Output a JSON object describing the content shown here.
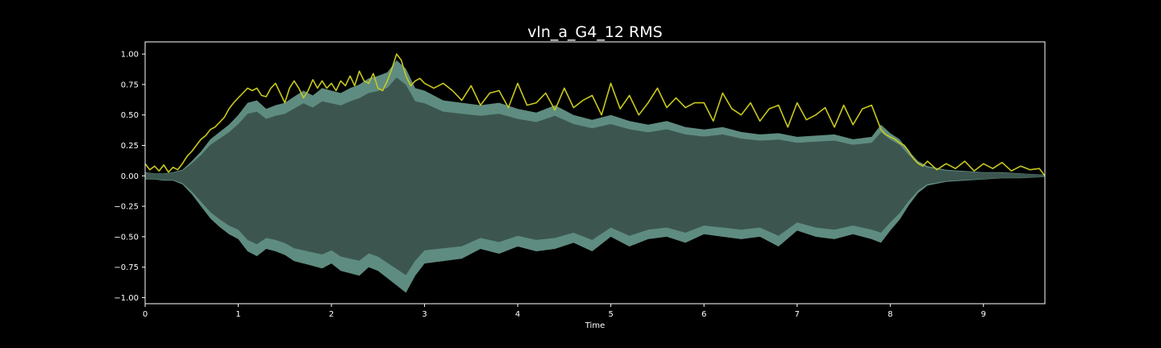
{
  "chart_data": {
    "type": "area",
    "title": "vln_a_G4_12 RMS",
    "xlabel": "Time",
    "ylabel": "",
    "xlim": [
      0,
      9.66
    ],
    "ylim": [
      -1.05,
      1.1
    ],
    "x_ticks": [
      0,
      1,
      2,
      3,
      4,
      5,
      6,
      7,
      8,
      9
    ],
    "x_tick_labels": [
      "0",
      "1",
      "2",
      "3",
      "4",
      "5",
      "6",
      "7",
      "8",
      "9"
    ],
    "y_ticks": [
      1.0,
      0.75,
      0.5,
      0.25,
      0.0,
      -0.25,
      -0.5,
      -0.75,
      -1.0
    ],
    "y_tick_labels": [
      "1.00",
      "0.75",
      "0.50",
      "0.25",
      "0.00",
      "−0.25",
      "−0.50",
      "−0.75",
      "−1.00"
    ],
    "grid": false,
    "colors": {
      "background": "#000000",
      "axes_edge": "#ffffff",
      "waveform": "#3c564f",
      "waveform_peaks": "#5f8c80",
      "rms_line": "#c8c81e"
    },
    "series": [
      {
        "kind": "waveform_envelope",
        "x": [
          0,
          0.1,
          0.2,
          0.3,
          0.4,
          0.5,
          0.6,
          0.7,
          0.8,
          0.9,
          1.0,
          1.1,
          1.2,
          1.3,
          1.4,
          1.5,
          1.6,
          1.7,
          1.8,
          1.9,
          2.0,
          2.1,
          2.2,
          2.3,
          2.4,
          2.5,
          2.6,
          2.7,
          2.8,
          2.9,
          3.0,
          3.2,
          3.4,
          3.6,
          3.8,
          4.0,
          4.2,
          4.4,
          4.6,
          4.8,
          5.0,
          5.2,
          5.4,
          5.6,
          5.8,
          6.0,
          6.2,
          6.4,
          6.6,
          6.8,
          7.0,
          7.2,
          7.4,
          7.6,
          7.8,
          7.9,
          8.0,
          8.1,
          8.2,
          8.3,
          8.4,
          8.6,
          8.8,
          9.0,
          9.2,
          9.4,
          9.66
        ],
        "upper": [
          0.03,
          0.02,
          0.02,
          0.03,
          0.05,
          0.12,
          0.2,
          0.3,
          0.36,
          0.42,
          0.5,
          0.6,
          0.62,
          0.55,
          0.58,
          0.6,
          0.65,
          0.7,
          0.66,
          0.72,
          0.7,
          0.68,
          0.72,
          0.75,
          0.8,
          0.82,
          0.85,
          0.95,
          0.88,
          0.72,
          0.7,
          0.62,
          0.6,
          0.58,
          0.6,
          0.55,
          0.52,
          0.58,
          0.5,
          0.46,
          0.5,
          0.45,
          0.42,
          0.45,
          0.4,
          0.38,
          0.4,
          0.36,
          0.34,
          0.35,
          0.32,
          0.33,
          0.34,
          0.3,
          0.32,
          0.42,
          0.35,
          0.3,
          0.2,
          0.12,
          0.08,
          0.05,
          0.04,
          0.03,
          0.03,
          0.02,
          0.01
        ],
        "lower": [
          -0.03,
          -0.03,
          -0.04,
          -0.04,
          -0.07,
          -0.15,
          -0.25,
          -0.35,
          -0.42,
          -0.48,
          -0.52,
          -0.62,
          -0.66,
          -0.6,
          -0.62,
          -0.65,
          -0.7,
          -0.72,
          -0.74,
          -0.76,
          -0.72,
          -0.78,
          -0.8,
          -0.82,
          -0.75,
          -0.78,
          -0.84,
          -0.9,
          -0.96,
          -0.82,
          -0.72,
          -0.7,
          -0.68,
          -0.6,
          -0.64,
          -0.58,
          -0.62,
          -0.6,
          -0.55,
          -0.62,
          -0.5,
          -0.58,
          -0.52,
          -0.5,
          -0.55,
          -0.48,
          -0.5,
          -0.52,
          -0.5,
          -0.58,
          -0.45,
          -0.5,
          -0.52,
          -0.48,
          -0.52,
          -0.55,
          -0.45,
          -0.36,
          -0.24,
          -0.14,
          -0.08,
          -0.05,
          -0.04,
          -0.03,
          -0.02,
          -0.02,
          -0.01
        ]
      },
      {
        "kind": "rms",
        "x": [
          0,
          0.05,
          0.1,
          0.15,
          0.2,
          0.25,
          0.3,
          0.35,
          0.4,
          0.45,
          0.5,
          0.55,
          0.6,
          0.65,
          0.7,
          0.75,
          0.8,
          0.85,
          0.9,
          0.95,
          1.0,
          1.05,
          1.1,
          1.15,
          1.2,
          1.25,
          1.3,
          1.35,
          1.4,
          1.45,
          1.5,
          1.55,
          1.6,
          1.65,
          1.7,
          1.75,
          1.8,
          1.85,
          1.9,
          1.95,
          2.0,
          2.05,
          2.1,
          2.15,
          2.2,
          2.25,
          2.3,
          2.35,
          2.4,
          2.45,
          2.5,
          2.55,
          2.6,
          2.65,
          2.7,
          2.75,
          2.8,
          2.85,
          2.9,
          2.95,
          3.0,
          3.1,
          3.2,
          3.3,
          3.4,
          3.5,
          3.6,
          3.7,
          3.8,
          3.9,
          4.0,
          4.1,
          4.2,
          4.3,
          4.4,
          4.5,
          4.6,
          4.7,
          4.8,
          4.9,
          5.0,
          5.1,
          5.2,
          5.3,
          5.4,
          5.5,
          5.6,
          5.7,
          5.8,
          5.9,
          6.0,
          6.1,
          6.2,
          6.3,
          6.4,
          6.5,
          6.6,
          6.7,
          6.8,
          6.9,
          7.0,
          7.1,
          7.2,
          7.3,
          7.4,
          7.5,
          7.6,
          7.7,
          7.8,
          7.85,
          7.9,
          7.95,
          8.0,
          8.05,
          8.1,
          8.15,
          8.2,
          8.25,
          8.3,
          8.35,
          8.4,
          8.5,
          8.6,
          8.7,
          8.8,
          8.9,
          9.0,
          9.1,
          9.2,
          9.3,
          9.4,
          9.5,
          9.6,
          9.66
        ],
        "y": [
          0.1,
          0.05,
          0.08,
          0.04,
          0.09,
          0.03,
          0.07,
          0.05,
          0.1,
          0.16,
          0.2,
          0.25,
          0.3,
          0.33,
          0.38,
          0.4,
          0.44,
          0.48,
          0.55,
          0.6,
          0.64,
          0.68,
          0.72,
          0.7,
          0.72,
          0.66,
          0.65,
          0.72,
          0.76,
          0.68,
          0.6,
          0.72,
          0.78,
          0.72,
          0.64,
          0.7,
          0.79,
          0.72,
          0.78,
          0.72,
          0.76,
          0.7,
          0.78,
          0.74,
          0.82,
          0.74,
          0.86,
          0.78,
          0.76,
          0.84,
          0.72,
          0.7,
          0.78,
          0.88,
          1.0,
          0.95,
          0.82,
          0.74,
          0.78,
          0.8,
          0.76,
          0.72,
          0.76,
          0.7,
          0.62,
          0.74,
          0.58,
          0.68,
          0.7,
          0.56,
          0.76,
          0.58,
          0.6,
          0.68,
          0.54,
          0.72,
          0.56,
          0.62,
          0.66,
          0.5,
          0.76,
          0.55,
          0.66,
          0.5,
          0.6,
          0.72,
          0.56,
          0.64,
          0.56,
          0.6,
          0.6,
          0.45,
          0.68,
          0.55,
          0.5,
          0.6,
          0.45,
          0.55,
          0.58,
          0.4,
          0.6,
          0.46,
          0.5,
          0.56,
          0.4,
          0.58,
          0.42,
          0.55,
          0.58,
          0.48,
          0.38,
          0.34,
          0.32,
          0.3,
          0.27,
          0.25,
          0.2,
          0.14,
          0.1,
          0.08,
          0.12,
          0.05,
          0.1,
          0.06,
          0.12,
          0.04,
          0.1,
          0.06,
          0.11,
          0.04,
          0.08,
          0.05,
          0.06,
          0.0
        ]
      }
    ]
  }
}
